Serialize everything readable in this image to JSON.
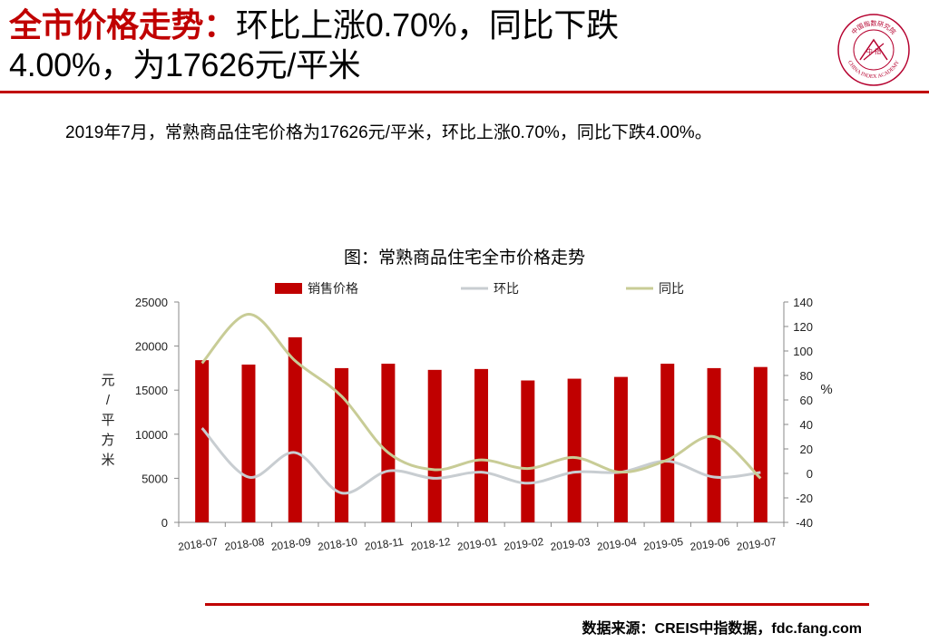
{
  "header": {
    "title_highlight": "全市价格走势：",
    "title_line1": "环比上涨0.70%，同比下跌",
    "title_line2": "4.00%，为17626元/平米"
  },
  "logo": {
    "text_top": "中国指数研究院",
    "text_bottom": "CHINA INDEX ACADEMY",
    "center_text": "中 指"
  },
  "summary": "2019年7月，常熟商品住宅价格为17626元/平米，环比上涨0.70%，同比下跌4.00%。",
  "chart_data": {
    "type": "bar",
    "title": "图：常熟商品住宅全市价格走势",
    "categories": [
      "2018-07",
      "2018-08",
      "2018-09",
      "2018-10",
      "2018-11",
      "2018-12",
      "2019-01",
      "2019-02",
      "2019-03",
      "2019-04",
      "2019-05",
      "2019-06",
      "2019-07"
    ],
    "series": [
      {
        "name": "销售价格",
        "type": "bar",
        "axis": "left",
        "color": "#c00000",
        "values": [
          18400,
          17900,
          21000,
          17500,
          18000,
          17300,
          17400,
          16100,
          16300,
          16500,
          18000,
          17500,
          17626
        ]
      },
      {
        "name": "环比",
        "type": "line",
        "axis": "right",
        "color": "#c8cdd1",
        "values": [
          37,
          -3,
          17,
          -16,
          2,
          -4,
          1,
          -8,
          1,
          1,
          10,
          -3,
          0.7
        ]
      },
      {
        "name": "同比",
        "type": "line",
        "axis": "right",
        "color": "#c8cc96",
        "values": [
          90,
          130,
          92,
          63,
          17,
          3,
          11,
          4,
          13,
          1,
          11,
          30,
          -4
        ]
      }
    ],
    "ylabel": "元/平方米",
    "y2label": "%",
    "ylim": [
      0,
      25000
    ],
    "yticks": [
      0,
      5000,
      10000,
      15000,
      20000,
      25000
    ],
    "y2lim": [
      -40,
      140
    ],
    "y2ticks": [
      -40,
      -20,
      0,
      20,
      40,
      60,
      80,
      100,
      120,
      140
    ],
    "grid": false,
    "legend": "top"
  },
  "source": "数据来源：CREIS中指数据，fdc.fang.com"
}
